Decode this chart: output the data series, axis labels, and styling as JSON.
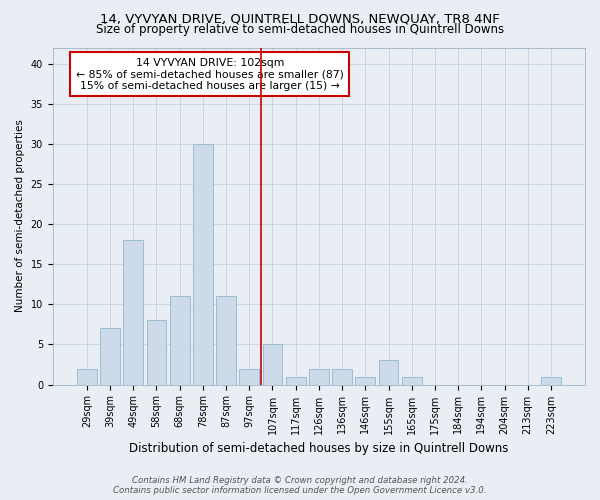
{
  "title": "14, VYVYAN DRIVE, QUINTRELL DOWNS, NEWQUAY, TR8 4NF",
  "subtitle": "Size of property relative to semi-detached houses in Quintrell Downs",
  "xlabel": "Distribution of semi-detached houses by size in Quintrell Downs",
  "ylabel": "Number of semi-detached properties",
  "footnote1": "Contains HM Land Registry data © Crown copyright and database right 2024.",
  "footnote2": "Contains public sector information licensed under the Open Government Licence v3.0.",
  "categories": [
    "29sqm",
    "39sqm",
    "49sqm",
    "58sqm",
    "68sqm",
    "78sqm",
    "87sqm",
    "97sqm",
    "107sqm",
    "117sqm",
    "126sqm",
    "136sqm",
    "146sqm",
    "155sqm",
    "165sqm",
    "175sqm",
    "184sqm",
    "194sqm",
    "204sqm",
    "213sqm",
    "223sqm"
  ],
  "values": [
    2,
    7,
    18,
    8,
    11,
    30,
    11,
    2,
    5,
    1,
    2,
    2,
    1,
    3,
    1,
    0,
    0,
    0,
    0,
    0,
    1
  ],
  "bar_color": "#ccdaea",
  "bar_edge_color": "#9bbdd4",
  "grid_color": "#c5d3df",
  "bg_color": "#e8eef4",
  "vline_color": "#cc0000",
  "annotation_line1": "14 VYVYAN DRIVE: 102sqm",
  "annotation_line2": "← 85% of semi-detached houses are smaller (87)",
  "annotation_line3": "15% of semi-detached houses are larger (15) →",
  "annotation_box_color": "#ffffff",
  "annotation_box_edge": "#cc0000",
  "ylim": [
    0,
    42
  ],
  "yticks": [
    0,
    5,
    10,
    15,
    20,
    25,
    30,
    35,
    40
  ],
  "title_fontsize": 9.5,
  "subtitle_fontsize": 8.5,
  "xlabel_fontsize": 8.5,
  "ylabel_fontsize": 7.5,
  "tick_fontsize": 7,
  "annot_fontsize": 7.8,
  "footnote_fontsize": 6.2
}
